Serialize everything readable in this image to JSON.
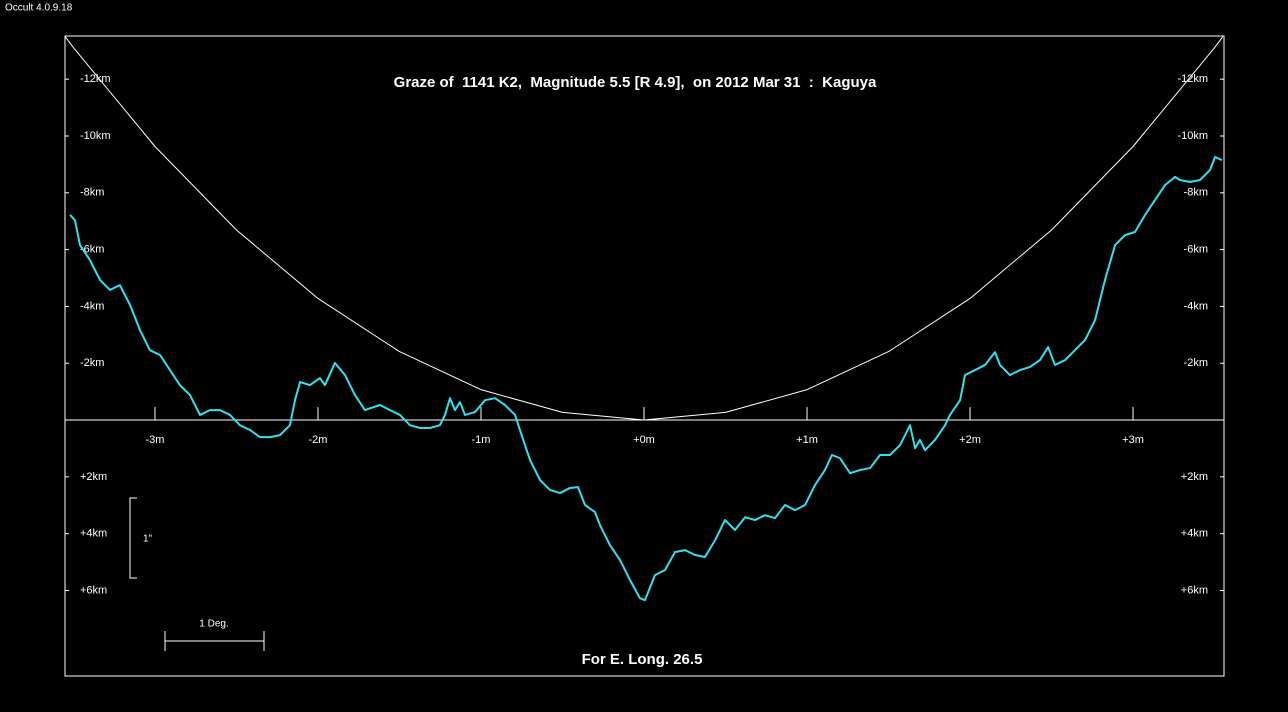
{
  "app_label": "Occult 4.0.9.18",
  "chart_data": {
    "type": "line",
    "title": "Graze of  1141 K2,  Magnitude 5.5 [R 4.9],  on 2012 Mar 31  :  Kaguya",
    "footer": "For E. Long. 26.5",
    "annotations": [
      "1\"",
      "1 Deg."
    ],
    "xlim": [
      -3.552,
      3.558
    ],
    "ylim": [
      9.01,
      -13.52
    ],
    "xticks": [
      {
        "value": -3,
        "label": "-3m"
      },
      {
        "value": -2,
        "label": "-2m"
      },
      {
        "value": -1,
        "label": "-1m"
      },
      {
        "value": 0,
        "label": "+0m"
      },
      {
        "value": 1,
        "label": "+1m"
      },
      {
        "value": 2,
        "label": "+2m"
      },
      {
        "value": 3,
        "label": "+3m"
      }
    ],
    "yticks": [
      {
        "value": -12,
        "label": "-12km"
      },
      {
        "value": -10,
        "label": "-10km"
      },
      {
        "value": -8,
        "label": "-8km"
      },
      {
        "value": -6,
        "label": "-6km"
      },
      {
        "value": -4,
        "label": "-4km"
      },
      {
        "value": -2,
        "label": "-2km"
      },
      {
        "value": 2,
        "label": "+2km"
      },
      {
        "value": 4,
        "label": "+4km"
      },
      {
        "value": 6,
        "label": "+6km"
      }
    ],
    "grid": false,
    "series": [
      {
        "color": "#ffffff",
        "x": [
          -3.55,
          -3.5,
          -3,
          -2.5,
          -2,
          -1.5,
          -1,
          -0.5,
          0,
          0.5,
          1,
          1.5,
          2,
          2.5,
          3,
          3.5,
          3.55
        ],
        "values": [
          -13.49,
          -13.11,
          -9.63,
          -6.69,
          -4.28,
          -2.41,
          -1.07,
          -0.27,
          0,
          -0.27,
          -1.07,
          -2.41,
          -4.28,
          -6.69,
          -9.63,
          -13.11,
          -13.49
        ]
      },
      {
        "color": "#33e0ee",
        "x": [
          -3.521,
          -3.491,
          -3.46,
          -3.399,
          -3.337,
          -3.276,
          -3.215,
          -3.153,
          -3.092,
          -3.031,
          -2.969,
          -2.908,
          -2.847,
          -2.785,
          -2.724,
          -2.663,
          -2.601,
          -2.54,
          -2.479,
          -2.417,
          -2.356,
          -2.294,
          -2.233,
          -2.172,
          -2.141,
          -2.11,
          -2.049,
          -1.988,
          -1.957,
          -1.896,
          -1.834,
          -1.773,
          -1.712,
          -1.62,
          -1.558,
          -1.497,
          -1.436,
          -1.374,
          -1.313,
          -1.252,
          -1.221,
          -1.19,
          -1.16,
          -1.129,
          -1.098,
          -1.037,
          -0.975,
          -0.914,
          -0.853,
          -0.791,
          -0.761,
          -0.699,
          -0.638,
          -0.577,
          -0.515,
          -0.454,
          -0.405,
          -0.362,
          -0.301,
          -0.27,
          -0.209,
          -0.147,
          -0.086,
          -0.025,
          0.006,
          0.067,
          0.129,
          0.19,
          0.252,
          0.313,
          0.374,
          0.436,
          0.497,
          0.558,
          0.62,
          0.681,
          0.742,
          0.804,
          0.865,
          0.926,
          0.988,
          1.049,
          1.11,
          1.153,
          1.202,
          1.264,
          1.325,
          1.387,
          1.448,
          1.509,
          1.571,
          1.632,
          1.663,
          1.693,
          1.724,
          1.785,
          1.847,
          1.877,
          1.939,
          1.969,
          2.031,
          2.092,
          2.153,
          2.184,
          2.245,
          2.307,
          2.368,
          2.429,
          2.479,
          2.521,
          2.583,
          2.644,
          2.706,
          2.767,
          2.828,
          2.89,
          2.951,
          3.012,
          3.074,
          3.135,
          3.196,
          3.258,
          3.288,
          3.35,
          3.411,
          3.472,
          3.503,
          3.546
        ],
        "values": [
          -7.22,
          -7.04,
          -6.16,
          -5.63,
          -4.93,
          -4.58,
          -4.75,
          -4.05,
          -3.17,
          -2.46,
          -2.29,
          -1.76,
          -1.23,
          -0.88,
          -0.18,
          -0.35,
          -0.35,
          -0.18,
          0.18,
          0.35,
          0.6,
          0.6,
          0.53,
          0.18,
          -0.7,
          -1.34,
          -1.23,
          -1.48,
          -1.23,
          -2.01,
          -1.58,
          -0.88,
          -0.35,
          -0.53,
          -0.35,
          -0.18,
          0.18,
          0.28,
          0.28,
          0.18,
          -0.18,
          -0.77,
          -0.35,
          -0.63,
          -0.18,
          -0.28,
          -0.7,
          -0.77,
          -0.53,
          -0.18,
          0.35,
          1.41,
          2.11,
          2.46,
          2.57,
          2.39,
          2.36,
          2.99,
          3.24,
          3.7,
          4.4,
          4.93,
          5.63,
          6.27,
          6.34,
          5.46,
          5.28,
          4.65,
          4.58,
          4.75,
          4.82,
          4.23,
          3.52,
          3.87,
          3.42,
          3.52,
          3.35,
          3.45,
          2.99,
          3.17,
          2.99,
          2.29,
          1.76,
          1.23,
          1.34,
          1.87,
          1.76,
          1.69,
          1.23,
          1.23,
          0.88,
          0.18,
          0.99,
          0.7,
          1.06,
          0.7,
          0.18,
          -0.18,
          -0.7,
          -1.58,
          -1.76,
          -1.94,
          -2.39,
          -1.94,
          -1.58,
          -1.76,
          -1.87,
          -2.11,
          -2.57,
          -1.94,
          -2.11,
          -2.46,
          -2.82,
          -3.52,
          -4.93,
          -6.16,
          -6.51,
          -6.62,
          -7.22,
          -7.75,
          -8.27,
          -8.56,
          -8.45,
          -8.38,
          -8.45,
          -8.8,
          -9.26,
          -9.15
        ]
      }
    ]
  }
}
